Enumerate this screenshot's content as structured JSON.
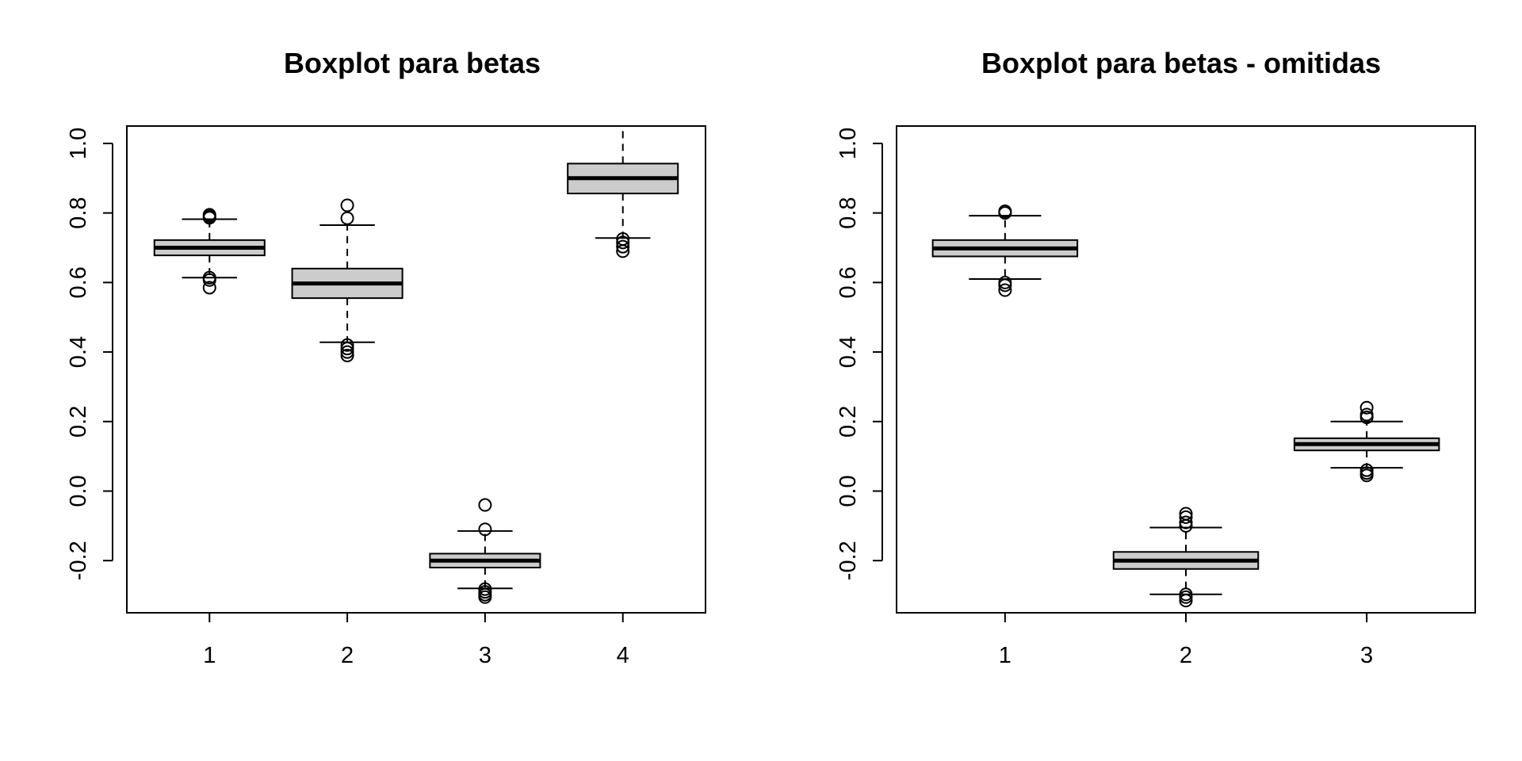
{
  "chart_data": [
    {
      "type": "boxplot",
      "title": "Boxplot para betas",
      "xlabel": "",
      "ylabel": "",
      "ylim": [
        -0.35,
        1.05
      ],
      "yticks": [
        -0.2,
        0.0,
        0.2,
        0.4,
        0.6,
        0.8,
        1.0
      ],
      "ytick_labels": [
        "-0.2",
        "0.0",
        "0.2",
        "0.4",
        "0.6",
        "0.8",
        "1.0"
      ],
      "categories": [
        "1",
        "2",
        "3",
        "4"
      ],
      "grid": false,
      "box_fill": "#cccccc",
      "boxes": [
        {
          "category": "1",
          "whisker_low": 0.614,
          "q1": 0.678,
          "median": 0.7,
          "q3": 0.722,
          "whisker_high": 0.782,
          "outliers": [
            0.585,
            0.607,
            0.614,
            0.786,
            0.79,
            0.795
          ]
        },
        {
          "category": "2",
          "whisker_low": 0.428,
          "q1": 0.555,
          "median": 0.597,
          "q3": 0.64,
          "whisker_high": 0.765,
          "outliers": [
            0.39,
            0.4,
            0.41,
            0.42,
            0.785,
            0.822
          ]
        },
        {
          "category": "3",
          "whisker_low": -0.28,
          "q1": -0.22,
          "median": -0.2,
          "q3": -0.18,
          "whisker_high": -0.115,
          "outliers": [
            -0.305,
            -0.298,
            -0.29,
            -0.282,
            -0.11,
            -0.04
          ]
        },
        {
          "category": "4",
          "whisker_low": 0.728,
          "q1": 0.856,
          "median": 0.9,
          "q3": 0.942,
          "whisker_high": 1.05,
          "outliers": [
            0.69,
            0.703,
            0.715,
            0.725
          ]
        }
      ]
    },
    {
      "type": "boxplot",
      "title": "Boxplot para betas - omitidas",
      "xlabel": "",
      "ylabel": "",
      "ylim": [
        -0.35,
        1.05
      ],
      "yticks": [
        -0.2,
        0.0,
        0.2,
        0.4,
        0.6,
        0.8,
        1.0
      ],
      "ytick_labels": [
        "-0.2",
        "0.0",
        "0.2",
        "0.4",
        "0.6",
        "0.8",
        "1.0"
      ],
      "categories": [
        "1",
        "2",
        "3"
      ],
      "grid": false,
      "box_fill": "#cccccc",
      "boxes": [
        {
          "category": "1",
          "whisker_low": 0.61,
          "q1": 0.675,
          "median": 0.698,
          "q3": 0.722,
          "whisker_high": 0.792,
          "outliers": [
            0.578,
            0.592,
            0.6,
            0.8,
            0.805
          ]
        },
        {
          "category": "2",
          "whisker_low": -0.297,
          "q1": -0.224,
          "median": -0.2,
          "q3": -0.175,
          "whisker_high": -0.105,
          "outliers": [
            -0.315,
            -0.305,
            -0.297,
            -0.1,
            -0.09,
            -0.075,
            -0.065
          ]
        },
        {
          "category": "3",
          "whisker_low": 0.067,
          "q1": 0.117,
          "median": 0.135,
          "q3": 0.152,
          "whisker_high": 0.2,
          "outliers": [
            0.045,
            0.052,
            0.06,
            0.212,
            0.22,
            0.24
          ]
        }
      ]
    }
  ]
}
